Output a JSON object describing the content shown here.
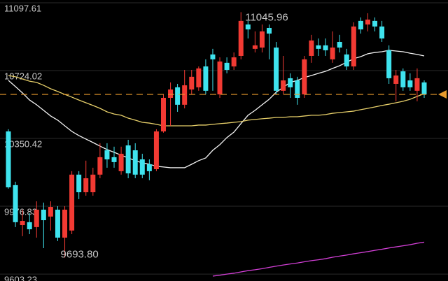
{
  "chart_data": {
    "type": "candlestick",
    "ylim": [
      9565,
      11113
    ],
    "yticks": [
      11097.61,
      10724.02,
      10350.42,
      9976.83,
      9603.23
    ],
    "grid": true,
    "up_color": "#f23a33",
    "down_color": "#3fe3ee",
    "open": [
      10389,
      10093,
      9873,
      9889,
      9862,
      9958,
      9920,
      9958,
      9804,
      9843,
      10151,
      10054,
      10054,
      10151,
      10285,
      10247,
      10170,
      10312,
      10285,
      10235,
      10208,
      10181,
      10389,
      10574,
      10632,
      10536,
      10620,
      10632,
      10747,
      10813,
      10593,
      10767,
      10747,
      10805,
      10978,
      10844,
      10851,
      10959,
      10851,
      10613,
      10682,
      10670,
      10593,
      10805,
      10863,
      10863,
      10786,
      10882,
      10813,
      10747,
      10998,
      10978,
      10998,
      10967,
      10836,
      10651,
      10720,
      10670,
      10613,
      10659
    ],
    "high": [
      10401,
      10112,
      9958,
      9939,
      10004,
      9997,
      10004,
      9977,
      9977,
      10170,
      10170,
      10228,
      10189,
      10324,
      10324,
      10305,
      10305,
      10343,
      10324,
      10266,
      10235,
      10401,
      10593,
      10659,
      10651,
      10728,
      10728,
      10747,
      10786,
      10844,
      10797,
      10797,
      10824,
      11045.96,
      10998,
      10940,
      10978,
      10978,
      10882,
      10805,
      10709,
      10690,
      10805,
      10921,
      10901,
      10901,
      10940,
      10921,
      10844,
      10990,
      11017,
      11040,
      11017,
      10998,
      10863,
      10728,
      10736,
      10709,
      10736,
      10670
    ],
    "low": [
      10074,
      9862,
      9812,
      9823,
      9804,
      9746,
      9843,
      9785,
      9693.8,
      9823,
      10016,
      10035,
      10035,
      10131,
      10189,
      10189,
      10151,
      10131,
      10131,
      10131,
      10120,
      10170,
      10382,
      10420,
      10497,
      10516,
      10593,
      10613,
      10593,
      10613,
      10574,
      10709,
      10728,
      10786,
      10901,
      10824,
      10824,
      10786,
      10593,
      10593,
      10574,
      10536,
      10574,
      10767,
      10805,
      10805,
      10767,
      10824,
      10728,
      10728,
      10928,
      10940,
      10940,
      10882,
      10651,
      10555,
      10613,
      10613,
      10555,
      10574
    ],
    "close": [
      10081,
      9889,
      9896,
      9850,
      9958,
      9900,
      9973,
      9804,
      9958,
      10151,
      10054,
      10131,
      10151,
      10247,
      10235,
      10220,
      10266,
      10158,
      10151,
      10151,
      10170,
      10389,
      10574,
      10620,
      10536,
      10643,
      10690,
      10736,
      10613,
      10786,
      10774,
      10728,
      10797,
      10998,
      10951,
      10863,
      10940,
      10928,
      10613,
      10670,
      10632,
      10574,
      10786,
      10890,
      10844,
      10836,
      10851,
      10851,
      10747,
      10967,
      10951,
      11005,
      10967,
      10901,
      10682,
      10697,
      10632,
      10632,
      10682,
      10593
    ],
    "series": [
      {
        "color": "#f2f2f2",
        "values": [
          10670,
          10636,
          10601,
          10562,
          10536,
          10505,
          10474,
          10451,
          10420,
          10389,
          10366,
          10347,
          10328,
          10308,
          10289,
          10274,
          10258,
          10243,
          10228,
          10216,
          10208,
          10197,
          10193,
          10189,
          10189,
          10189,
          10208,
          10228,
          10243,
          10285,
          10316,
          10355,
          10385,
          10432,
          10478,
          10505,
          10536,
          10566,
          10605,
          10632,
          10659,
          10670,
          10686,
          10697,
          10709,
          10720,
          10736,
          10751,
          10770,
          10790,
          10801,
          10817,
          10824,
          10828,
          10836,
          10832,
          10828,
          10820,
          10813,
          10805
        ]
      },
      {
        "color": "#e8d06a",
        "values": [
          10697,
          10690,
          10678,
          10666,
          10659,
          10643,
          10624,
          10609,
          10593,
          10578,
          10562,
          10547,
          10532,
          10516,
          10497,
          10485,
          10478,
          10462,
          10451,
          10439,
          10435,
          10428,
          10420,
          10420,
          10420,
          10420,
          10420,
          10424,
          10424,
          10428,
          10432,
          10435,
          10439,
          10443,
          10451,
          10455,
          10459,
          10462,
          10466,
          10466,
          10470,
          10470,
          10474,
          10478,
          10478,
          10482,
          10489,
          10493,
          10497,
          10501,
          10509,
          10516,
          10524,
          10532,
          10539,
          10547,
          10555,
          10566,
          10582,
          10597
        ]
      },
      {
        "color": "#d23fd6",
        "values": [
          null,
          null,
          null,
          null,
          null,
          null,
          null,
          null,
          null,
          null,
          null,
          null,
          null,
          null,
          null,
          null,
          null,
          null,
          null,
          null,
          null,
          null,
          null,
          null,
          null,
          null,
          null,
          null,
          null,
          9592,
          9597,
          9603,
          9608,
          9615,
          9622,
          9627,
          9633,
          9640,
          9647,
          9653,
          9659,
          9664,
          9671,
          9677,
          9682,
          9688,
          9696,
          9702,
          9708,
          9715,
          9721,
          9727,
          9734,
          9740,
          9747,
          9753,
          9759,
          9765,
          9773,
          9779
        ]
      }
    ],
    "last_price_color": "#e89a2c",
    "annotations": [
      {
        "value": 11045.96,
        "label": "11045.96"
      },
      {
        "value": 9693.8,
        "label": "9693.80"
      }
    ]
  }
}
